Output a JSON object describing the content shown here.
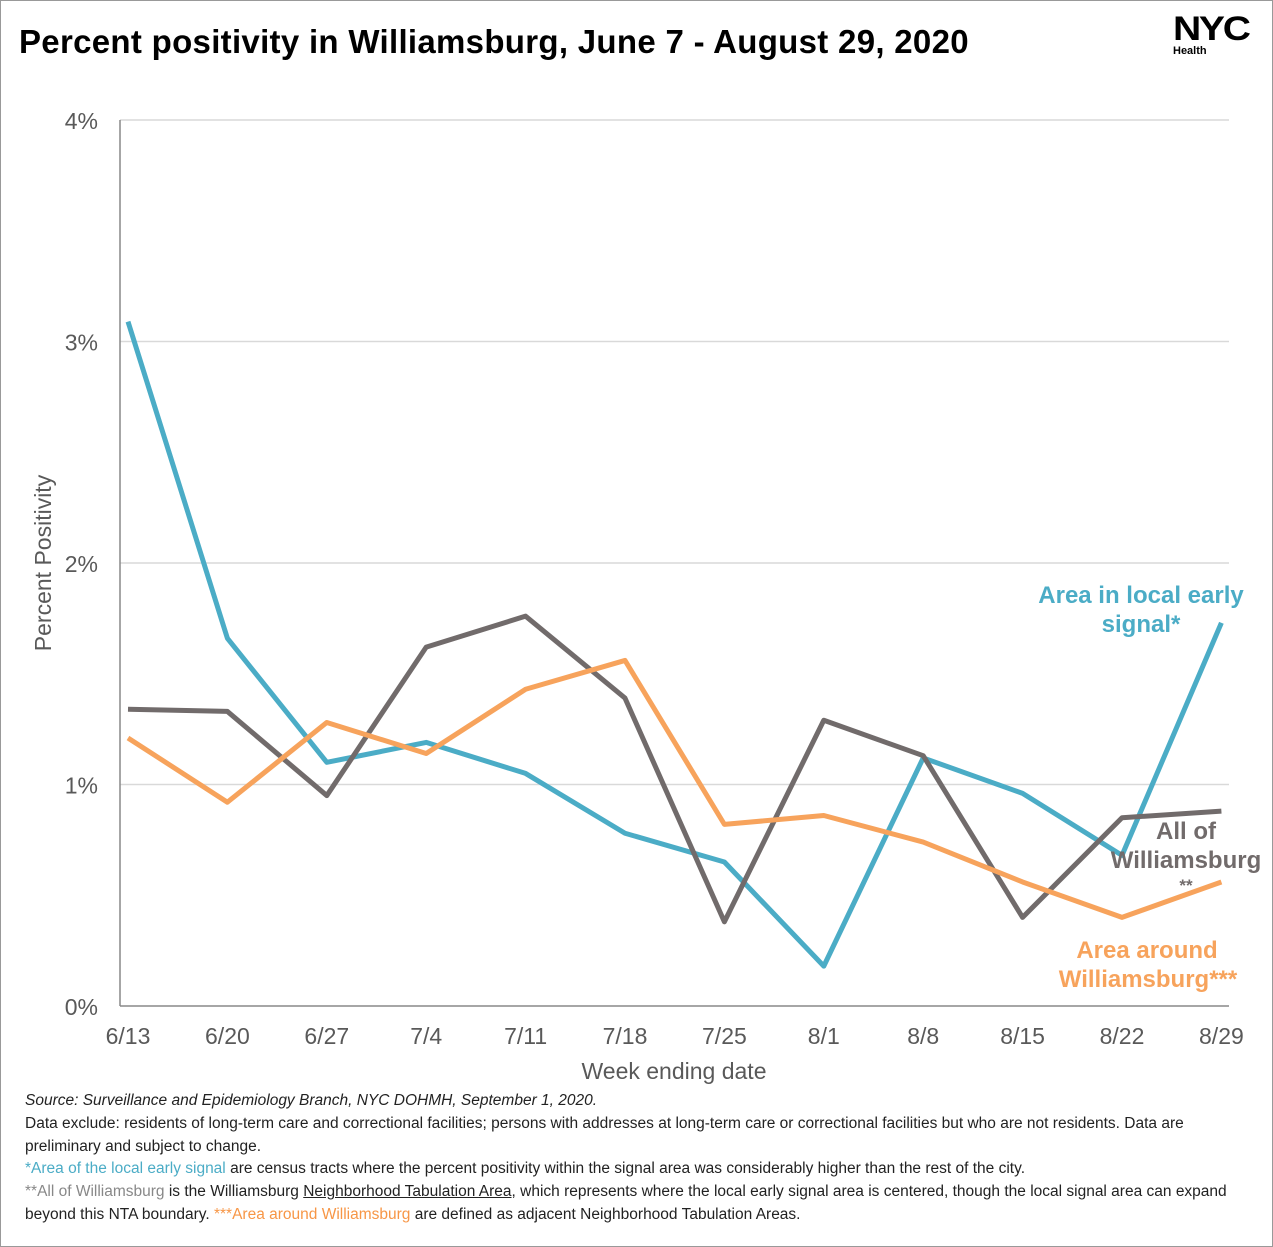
{
  "title": "Percent positivity in Williamsburg, June 7 - August 29, 2020",
  "logo": {
    "main": "NYC",
    "sub": "Health"
  },
  "chart_data": {
    "type": "line",
    "title": "Percent positivity in Williamsburg, June 7 - August 29, 2020",
    "xlabel": "Week ending date",
    "ylabel": "Percent Positivity",
    "ylim": [
      0,
      4
    ],
    "yticks": [
      "0%",
      "1%",
      "2%",
      "3%",
      "4%"
    ],
    "grid": true,
    "categories": [
      "6/13",
      "6/20",
      "6/27",
      "7/4",
      "7/11",
      "7/18",
      "7/25",
      "8/1",
      "8/8",
      "8/15",
      "8/22",
      "8/29"
    ],
    "series": [
      {
        "name": "Area in local early signal*",
        "color": "#4bacc6",
        "values": [
          3.09,
          1.66,
          1.1,
          1.19,
          1.05,
          0.78,
          0.65,
          0.18,
          1.12,
          0.96,
          0.68,
          1.73
        ]
      },
      {
        "name": "All of Williamsburg **",
        "color": "#716b6b",
        "values": [
          1.34,
          1.33,
          0.95,
          1.62,
          1.76,
          1.39,
          0.38,
          1.29,
          1.13,
          0.4,
          0.85,
          0.88
        ]
      },
      {
        "name": "Area around Williamsburg***",
        "color": "#f7a35c",
        "values": [
          1.21,
          0.92,
          1.28,
          1.14,
          1.43,
          1.56,
          0.82,
          0.86,
          0.74,
          0.56,
          0.4,
          0.56
        ]
      }
    ],
    "labels": [
      [
        "Area in local early",
        "signal*"
      ],
      [
        "All of",
        "Williamsburg",
        "**"
      ],
      [
        "Area around",
        "Williamsburg***"
      ]
    ]
  },
  "notes": {
    "source": "Source: Surveillance and Epidemiology Branch, NYC DOHMH, September 1, 2020.",
    "exclude": "Data exclude: residents of long-term care and correctional facilities; persons with addresses at long-term care or correctional facilities but who are not residents. Data are preliminary and subject to change.",
    "n1a": "*Area of the local early signal",
    "n1b": " are census tracts where the percent positivity within the signal area was considerably higher than the rest of the city.",
    "n2a": "**All of Williamsburg",
    "n2b": " is the Williamsburg ",
    "n2c": "Neighborhood Tabulation Area",
    "n2d": ", which represents where the local early signal area is centered, though the local signal area can expand beyond this NTA boundary. ",
    "n3a": "***Area around Williamsburg",
    "n3b": " are defined as adjacent Neighborhood Tabulation Areas."
  }
}
